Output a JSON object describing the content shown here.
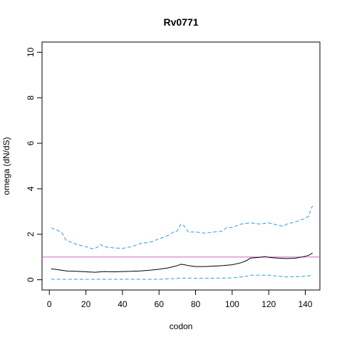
{
  "chart_data": {
    "type": "line",
    "title": "Rv0771",
    "xlabel": "codon",
    "ylabel": "omega (dN/dS)",
    "xlim": [
      -4,
      148
    ],
    "ylim": [
      -0.45,
      10.45
    ],
    "x_ticks": [
      0,
      20,
      40,
      60,
      80,
      100,
      120,
      140
    ],
    "y_ticks": [
      0,
      2,
      4,
      6,
      8,
      10
    ],
    "grid": false,
    "legend": "none",
    "reference_line": {
      "y": 1,
      "color": "#cc66cc"
    },
    "series": [
      {
        "role": "estimate",
        "color": "#000000",
        "dashed": false,
        "x": [
          1,
          5,
          10,
          15,
          20,
          25,
          30,
          35,
          40,
          45,
          50,
          55,
          60,
          65,
          68,
          70,
          72,
          74,
          76,
          80,
          85,
          90,
          95,
          100,
          105,
          108,
          110,
          115,
          118,
          120,
          125,
          130,
          135,
          140,
          142,
          144
        ],
        "y": [
          0.48,
          0.44,
          0.38,
          0.37,
          0.35,
          0.33,
          0.36,
          0.35,
          0.36,
          0.37,
          0.39,
          0.42,
          0.46,
          0.52,
          0.58,
          0.62,
          0.68,
          0.66,
          0.62,
          0.58,
          0.58,
          0.6,
          0.62,
          0.66,
          0.75,
          0.85,
          0.95,
          0.98,
          1.02,
          0.98,
          0.95,
          0.93,
          0.95,
          1.03,
          1.08,
          1.18
        ]
      },
      {
        "role": "upper",
        "color": "#1fa2df",
        "dashed": true,
        "x": [
          1,
          4,
          7,
          9,
          12,
          15,
          20,
          24,
          26,
          28,
          30,
          35,
          40,
          45,
          50,
          55,
          60,
          65,
          68,
          70,
          72,
          74,
          76,
          80,
          85,
          90,
          95,
          97,
          100,
          105,
          110,
          115,
          120,
          125,
          128,
          130,
          135,
          140,
          142,
          143,
          144
        ],
        "y": [
          2.28,
          2.2,
          2.05,
          1.75,
          1.65,
          1.55,
          1.45,
          1.35,
          1.42,
          1.55,
          1.45,
          1.4,
          1.38,
          1.45,
          1.6,
          1.65,
          1.8,
          1.95,
          2.1,
          2.15,
          2.45,
          2.35,
          2.1,
          2.1,
          2.05,
          2.1,
          2.15,
          2.3,
          2.3,
          2.45,
          2.5,
          2.45,
          2.5,
          2.4,
          2.35,
          2.45,
          2.55,
          2.7,
          2.8,
          3.1,
          3.25
        ]
      },
      {
        "role": "lower",
        "color": "#1fa2df",
        "dashed": true,
        "x": [
          1,
          20,
          40,
          60,
          65,
          70,
          75,
          80,
          100,
          108,
          110,
          120,
          130,
          140,
          144
        ],
        "y": [
          0.02,
          0.02,
          0.02,
          0.02,
          0.04,
          0.06,
          0.08,
          0.06,
          0.08,
          0.15,
          0.2,
          0.2,
          0.12,
          0.15,
          0.2
        ]
      }
    ]
  }
}
